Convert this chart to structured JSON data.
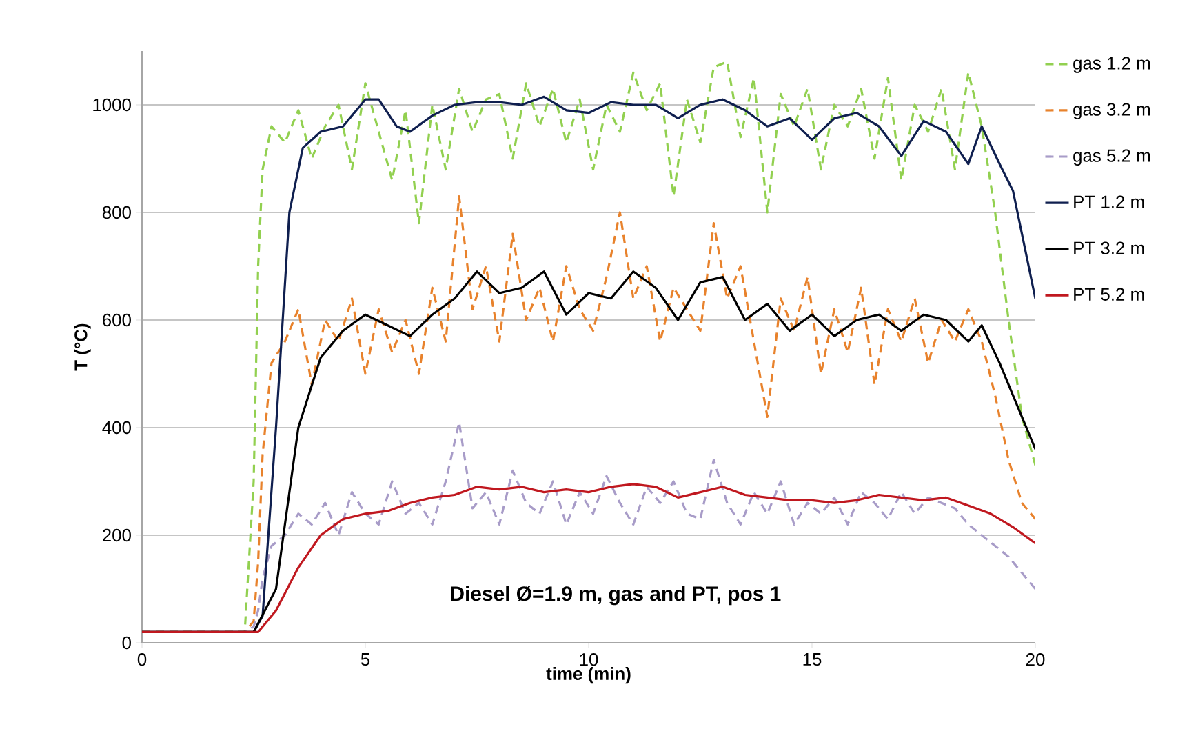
{
  "chart_data": {
    "type": "line",
    "xlabel": "time (min)",
    "ylabel": "T (°C)",
    "xlim": [
      0,
      20
    ],
    "ylim": [
      0,
      1100
    ],
    "xticks": [
      0,
      5,
      10,
      15,
      20
    ],
    "yticks": [
      0,
      200,
      400,
      600,
      800,
      1000
    ],
    "grid": "y",
    "legend": "right",
    "annotations": [
      "Diesel Ø=1.9 m, gas and PT, pos 1"
    ],
    "series": [
      {
        "name": "gas 1.2 m",
        "color": "#92d050",
        "line_style": "dashed",
        "x": [
          0,
          2.3,
          2.5,
          2.6,
          2.7,
          2.9,
          3.2,
          3.5,
          3.8,
          4.1,
          4.4,
          4.7,
          5.0,
          5.3,
          5.6,
          5.9,
          6.2,
          6.5,
          6.8,
          7.1,
          7.4,
          7.7,
          8.0,
          8.3,
          8.6,
          8.9,
          9.2,
          9.5,
          9.8,
          10.1,
          10.4,
          10.7,
          11.0,
          11.3,
          11.6,
          11.9,
          12.2,
          12.5,
          12.8,
          13.1,
          13.4,
          13.7,
          14.0,
          14.3,
          14.6,
          14.9,
          15.2,
          15.5,
          15.8,
          16.1,
          16.4,
          16.7,
          17.0,
          17.3,
          17.6,
          17.9,
          18.2,
          18.5,
          18.8,
          19.1,
          19.4,
          19.7,
          20.0
        ],
        "values": [
          20,
          20,
          300,
          700,
          880,
          960,
          930,
          990,
          900,
          960,
          1000,
          880,
          1040,
          950,
          860,
          990,
          780,
          1000,
          880,
          1030,
          950,
          1010,
          1020,
          900,
          1040,
          960,
          1030,
          930,
          1010,
          880,
          1000,
          950,
          1060,
          990,
          1040,
          830,
          1010,
          930,
          1070,
          1080,
          940,
          1050,
          800,
          1020,
          960,
          1030,
          880,
          1000,
          960,
          1030,
          900,
          1050,
          860,
          1000,
          950,
          1030,
          880,
          1060,
          960,
          800,
          600,
          420,
          330
        ]
      },
      {
        "name": "gas 3.2 m",
        "color": "#e8822c",
        "line_style": "dashed",
        "x": [
          0,
          2.3,
          2.5,
          2.6,
          2.7,
          2.9,
          3.2,
          3.5,
          3.8,
          4.1,
          4.4,
          4.7,
          5.0,
          5.3,
          5.6,
          5.9,
          6.2,
          6.5,
          6.8,
          7.1,
          7.4,
          7.7,
          8.0,
          8.3,
          8.6,
          8.9,
          9.2,
          9.5,
          9.8,
          10.1,
          10.4,
          10.7,
          11.0,
          11.3,
          11.6,
          11.9,
          12.2,
          12.5,
          12.8,
          13.1,
          13.4,
          13.7,
          14.0,
          14.3,
          14.6,
          14.9,
          15.2,
          15.5,
          15.8,
          16.1,
          16.4,
          16.7,
          17.0,
          17.3,
          17.6,
          17.9,
          18.2,
          18.5,
          18.8,
          19.1,
          19.4,
          19.7,
          20.0
        ],
        "values": [
          20,
          20,
          40,
          150,
          350,
          520,
          560,
          620,
          480,
          600,
          560,
          640,
          500,
          620,
          540,
          600,
          500,
          660,
          560,
          830,
          620,
          700,
          560,
          760,
          600,
          660,
          560,
          700,
          620,
          580,
          680,
          800,
          640,
          700,
          560,
          660,
          620,
          580,
          780,
          640,
          700,
          560,
          420,
          640,
          580,
          680,
          500,
          620,
          540,
          660,
          480,
          620,
          560,
          640,
          520,
          600,
          560,
          620,
          560,
          460,
          340,
          260,
          230
        ]
      },
      {
        "name": "gas 5.2 m",
        "color": "#a89cc8",
        "line_style": "dashed",
        "x": [
          0,
          2.3,
          2.5,
          2.6,
          2.7,
          2.9,
          3.2,
          3.5,
          3.8,
          4.1,
          4.4,
          4.7,
          5.0,
          5.3,
          5.6,
          5.9,
          6.2,
          6.5,
          6.8,
          7.1,
          7.4,
          7.7,
          8.0,
          8.3,
          8.6,
          8.9,
          9.2,
          9.5,
          9.8,
          10.1,
          10.4,
          10.7,
          11.0,
          11.3,
          11.6,
          11.9,
          12.2,
          12.5,
          12.8,
          13.1,
          13.4,
          13.7,
          14.0,
          14.3,
          14.6,
          14.9,
          15.2,
          15.5,
          15.8,
          16.1,
          16.4,
          16.7,
          17.0,
          17.3,
          17.6,
          17.9,
          18.2,
          18.5,
          18.8,
          19.1,
          19.4,
          19.7,
          20.0
        ],
        "values": [
          20,
          20,
          30,
          60,
          120,
          180,
          200,
          240,
          220,
          260,
          200,
          280,
          240,
          220,
          300,
          240,
          260,
          220,
          300,
          410,
          250,
          280,
          220,
          320,
          260,
          240,
          300,
          220,
          280,
          240,
          310,
          260,
          220,
          290,
          260,
          300,
          240,
          230,
          340,
          260,
          220,
          280,
          240,
          300,
          220,
          260,
          240,
          270,
          220,
          280,
          260,
          230,
          280,
          240,
          270,
          260,
          250,
          220,
          200,
          180,
          160,
          130,
          100
        ]
      },
      {
        "name": "PT 1.2 m",
        "color": "#0f1f4f",
        "line_style": "solid",
        "x": [
          0,
          2.5,
          2.7,
          3.0,
          3.3,
          3.6,
          4.0,
          4.5,
          5.0,
          5.3,
          5.7,
          6.0,
          6.5,
          7.0,
          7.5,
          8.0,
          8.5,
          9.0,
          9.5,
          10.0,
          10.5,
          11.0,
          11.5,
          12.0,
          12.5,
          13.0,
          13.5,
          14.0,
          14.5,
          15.0,
          15.5,
          16.0,
          16.5,
          17.0,
          17.5,
          18.0,
          18.5,
          18.8,
          19.2,
          19.5,
          19.8,
          20.0
        ],
        "values": [
          20,
          20,
          50,
          400,
          800,
          920,
          950,
          960,
          1010,
          1010,
          960,
          950,
          980,
          1000,
          1005,
          1005,
          1000,
          1015,
          990,
          985,
          1005,
          1000,
          1000,
          975,
          1000,
          1010,
          990,
          960,
          975,
          935,
          975,
          985,
          960,
          905,
          970,
          950,
          890,
          960,
          890,
          840,
          720,
          640
        ]
      },
      {
        "name": "PT 3.2 m",
        "color": "#000000",
        "line_style": "solid",
        "x": [
          0,
          2.5,
          3.0,
          3.5,
          4.0,
          4.5,
          5.0,
          5.5,
          6.0,
          6.5,
          7.0,
          7.5,
          8.0,
          8.5,
          9.0,
          9.5,
          10.0,
          10.5,
          11.0,
          11.5,
          12.0,
          12.5,
          13.0,
          13.5,
          14.0,
          14.5,
          15.0,
          15.5,
          16.0,
          16.5,
          17.0,
          17.5,
          18.0,
          18.5,
          18.8,
          19.2,
          19.6,
          20.0
        ],
        "values": [
          20,
          20,
          100,
          400,
          530,
          580,
          610,
          590,
          570,
          610,
          640,
          690,
          650,
          660,
          690,
          610,
          650,
          640,
          690,
          660,
          600,
          670,
          680,
          600,
          630,
          580,
          610,
          570,
          600,
          610,
          580,
          610,
          600,
          560,
          590,
          520,
          440,
          360
        ]
      },
      {
        "name": "PT 5.2 m",
        "color": "#c0181f",
        "line_style": "solid",
        "x": [
          0,
          2.6,
          3.0,
          3.5,
          4.0,
          4.5,
          5.0,
          5.5,
          6.0,
          6.5,
          7.0,
          7.5,
          8.0,
          8.5,
          9.0,
          9.5,
          10.0,
          10.5,
          11.0,
          11.5,
          12.0,
          12.5,
          13.0,
          13.5,
          14.0,
          14.5,
          15.0,
          15.5,
          16.0,
          16.5,
          17.0,
          17.5,
          18.0,
          18.5,
          19.0,
          19.5,
          20.0
        ],
        "values": [
          20,
          20,
          60,
          140,
          200,
          230,
          240,
          245,
          260,
          270,
          275,
          290,
          285,
          290,
          280,
          285,
          280,
          290,
          295,
          290,
          270,
          280,
          290,
          275,
          270,
          265,
          265,
          260,
          265,
          275,
          270,
          265,
          270,
          255,
          240,
          215,
          185
        ]
      }
    ]
  }
}
